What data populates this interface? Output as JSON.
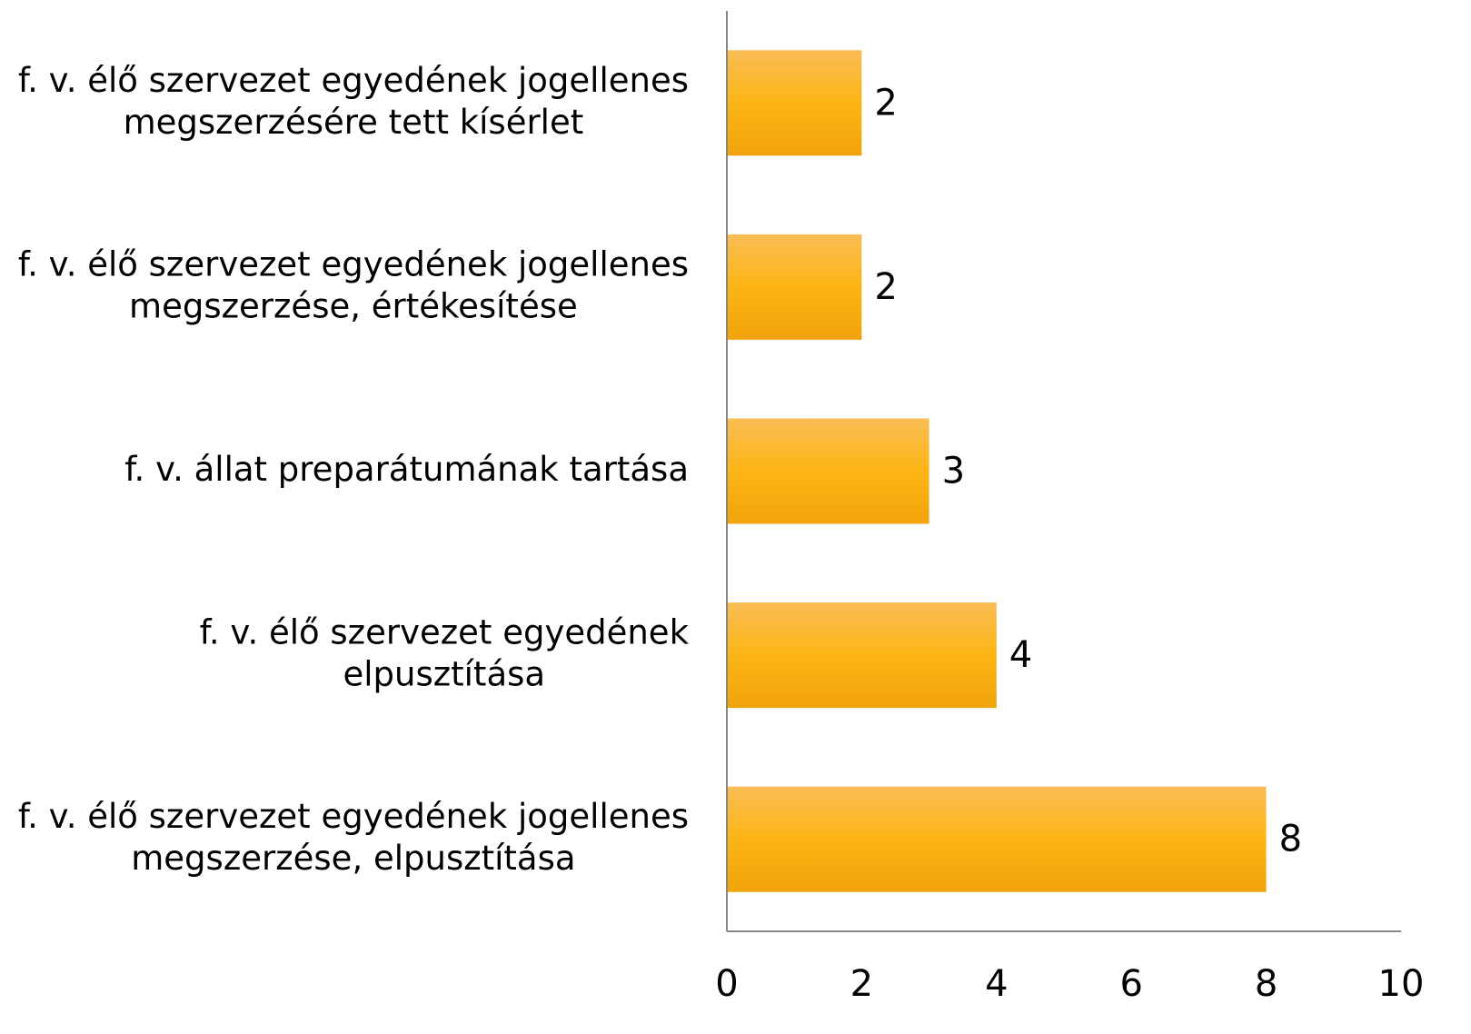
{
  "chart_data": {
    "type": "bar",
    "orientation": "horizontal",
    "categories": [
      [
        "f. v. élő szervezet egyedének jogellenes",
        "megszerzésére tett kísérlet"
      ],
      [
        "f. v. élő szervezet egyedének jogellenes",
        "megszerzése, értékesítése"
      ],
      [
        "f. v. állat preparátumának tartása"
      ],
      [
        "f. v. élő szervezet egyedének",
        "elpusztítása"
      ],
      [
        "f. v. élő szervezet egyedének jogellenes",
        "megszerzése, elpusztítása"
      ]
    ],
    "values": [
      2,
      2,
      3,
      4,
      8
    ],
    "color": "#fdb515",
    "xlim": [
      0,
      10
    ],
    "xticks": [
      0,
      2,
      4,
      6,
      8,
      10
    ],
    "grid": false
  }
}
